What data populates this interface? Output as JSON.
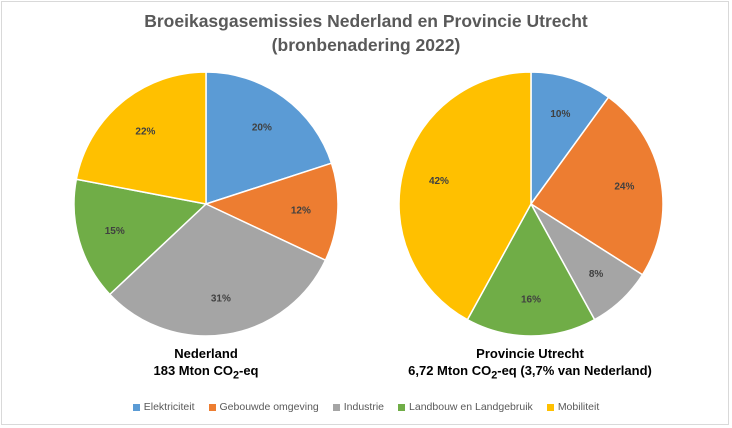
{
  "title_line1": "Broeikasgasemissies Nederland en Provincie Utrecht",
  "title_line2": "(bronbenadering 2022)",
  "colors": {
    "Elektriciteit": "#5b9bd5",
    "Gebouwde omgeving": "#ed7d31",
    "Industrie": "#a5a5a5",
    "Landbouw en Landgebruik": "#70ad47",
    "Mobiliteit": "#ffc000"
  },
  "legend": [
    "Elektriciteit",
    "Gebouwde omgeving",
    "Industrie",
    "Landbouw en Landgebruik",
    "Mobiliteit"
  ],
  "captions": {
    "nl_name": "Nederland",
    "nl_total_prefix": "183 Mton CO",
    "nl_total_suffix": "-eq",
    "ut_name": "Provincie Utrecht",
    "ut_total_prefix": "6,72 Mton CO",
    "ut_total_suffix": "-eq (3,7% van Nederland)",
    "subscript": "2"
  },
  "chart_data": [
    {
      "type": "pie",
      "title": "Nederland",
      "categories": [
        "Elektriciteit",
        "Gebouwde omgeving",
        "Industrie",
        "Landbouw en Landgebruik",
        "Mobiliteit"
      ],
      "values": [
        20,
        12,
        31,
        15,
        22
      ],
      "labels": [
        "20%",
        "12%",
        "31%",
        "15%",
        "22%"
      ]
    },
    {
      "type": "pie",
      "title": "Provincie Utrecht",
      "categories": [
        "Elektriciteit",
        "Gebouwde omgeving",
        "Industrie",
        "Landbouw en Landgebruik",
        "Mobiliteit"
      ],
      "values": [
        10,
        24,
        8,
        16,
        42
      ],
      "labels": [
        "10%",
        "24%",
        "8%",
        "16%",
        "42%"
      ]
    }
  ]
}
